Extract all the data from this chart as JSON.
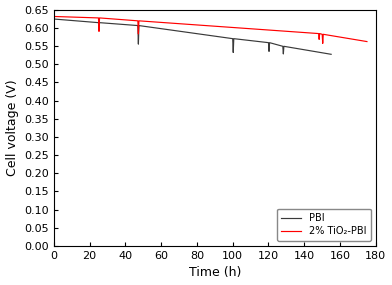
{
  "title": "",
  "xlabel": "Time (h)",
  "ylabel": "Cell voltage (V)",
  "xlim": [
    0,
    180
  ],
  "ylim": [
    0.0,
    0.65
  ],
  "yticks": [
    0.0,
    0.05,
    0.1,
    0.15,
    0.2,
    0.25,
    0.3,
    0.35,
    0.4,
    0.45,
    0.5,
    0.55,
    0.6,
    0.65
  ],
  "xticks": [
    0,
    20,
    40,
    60,
    80,
    100,
    120,
    140,
    160,
    180
  ],
  "pbi_color": "#3a3a3a",
  "tio2_color": "#ff0000",
  "legend_labels": [
    "PBI",
    "2% TiO₂-PBI"
  ],
  "background_color": "#ffffff",
  "pbi_segments": [
    {
      "x": [
        0,
        25
      ],
      "y": [
        0.624,
        0.614
      ]
    },
    {
      "x": [
        25,
        25.3
      ],
      "y": [
        0.614,
        0.597
      ]
    },
    {
      "x": [
        25.3,
        25.6
      ],
      "y": [
        0.597,
        0.614
      ]
    },
    {
      "x": [
        25.6,
        47
      ],
      "y": [
        0.614,
        0.606
      ]
    },
    {
      "x": [
        47,
        47.3
      ],
      "y": [
        0.606,
        0.555
      ]
    },
    {
      "x": [
        47.3,
        47.6
      ],
      "y": [
        0.555,
        0.606
      ]
    },
    {
      "x": [
        47.6,
        100
      ],
      "y": [
        0.606,
        0.57
      ]
    },
    {
      "x": [
        100,
        100.3
      ],
      "y": [
        0.57,
        0.532
      ]
    },
    {
      "x": [
        100.3,
        100.6
      ],
      "y": [
        0.532,
        0.57
      ]
    },
    {
      "x": [
        100.6,
        120
      ],
      "y": [
        0.57,
        0.559
      ]
    },
    {
      "x": [
        120,
        120.3
      ],
      "y": [
        0.559,
        0.535
      ]
    },
    {
      "x": [
        120.3,
        120.6
      ],
      "y": [
        0.535,
        0.559
      ]
    },
    {
      "x": [
        120.6,
        128
      ],
      "y": [
        0.559,
        0.549
      ]
    },
    {
      "x": [
        128,
        128.3
      ],
      "y": [
        0.549,
        0.528
      ]
    },
    {
      "x": [
        128.3,
        128.6
      ],
      "y": [
        0.528,
        0.549
      ]
    },
    {
      "x": [
        128.6,
        155
      ],
      "y": [
        0.549,
        0.527
      ]
    }
  ],
  "tio2_segments": [
    {
      "x": [
        0,
        25
      ],
      "y": [
        0.631,
        0.627
      ]
    },
    {
      "x": [
        25,
        25.3
      ],
      "y": [
        0.627,
        0.59
      ]
    },
    {
      "x": [
        25.3,
        25.6
      ],
      "y": [
        0.59,
        0.627
      ]
    },
    {
      "x": [
        25.6,
        47
      ],
      "y": [
        0.627,
        0.619
      ]
    },
    {
      "x": [
        47,
        47.3
      ],
      "y": [
        0.619,
        0.583
      ]
    },
    {
      "x": [
        47.3,
        47.6
      ],
      "y": [
        0.583,
        0.619
      ]
    },
    {
      "x": [
        47.6,
        148
      ],
      "y": [
        0.619,
        0.584
      ]
    },
    {
      "x": [
        148,
        148.3
      ],
      "y": [
        0.584,
        0.568
      ]
    },
    {
      "x": [
        148.3,
        148.6
      ],
      "y": [
        0.568,
        0.584
      ]
    },
    {
      "x": [
        148.6,
        150
      ],
      "y": [
        0.584,
        0.582
      ]
    },
    {
      "x": [
        150,
        150.3
      ],
      "y": [
        0.582,
        0.557
      ]
    },
    {
      "x": [
        150.3,
        150.6
      ],
      "y": [
        0.557,
        0.582
      ]
    },
    {
      "x": [
        150.6,
        175
      ],
      "y": [
        0.582,
        0.562
      ]
    }
  ]
}
